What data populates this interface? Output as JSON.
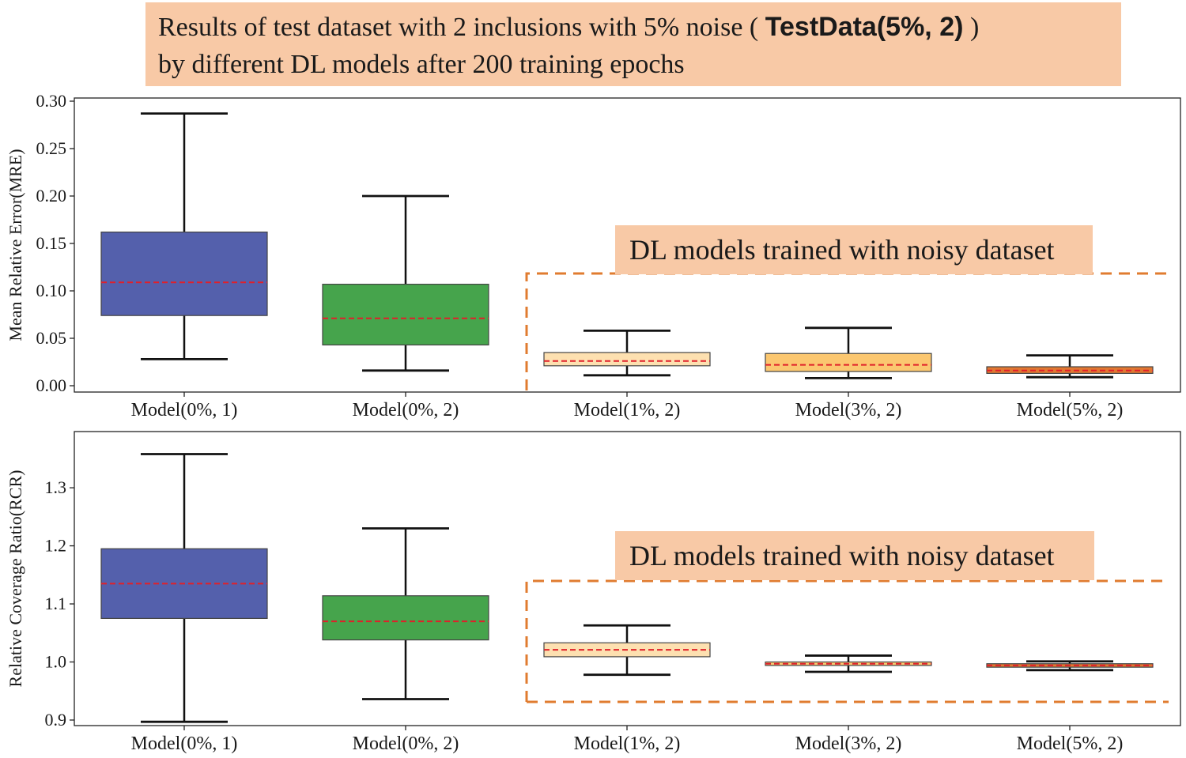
{
  "title": {
    "line1_prefix": "Results of test dataset with 2 inclusions with 5% noise (",
    "line1_bold": "TestData(5%, 2)",
    "line1_suffix": ")",
    "line2": "by different DL models after 200 training epochs"
  },
  "colors": {
    "model_0_1": "#5460ac",
    "model_0_2": "#46a44c",
    "model_1_2": "#fde0b0",
    "model_3_2": "#fbc770",
    "model_5_2": "#e07832",
    "median_line": "#e0202a",
    "highlight_box": "#f8c9a6",
    "highlight_border": "#e07c30"
  },
  "chart_data": [
    {
      "type": "box",
      "ylabel": "Mean Relative Error(MRE)",
      "ylim": [
        0.0,
        0.3
      ],
      "yticks": [
        0.0,
        0.05,
        0.1,
        0.15,
        0.2,
        0.25,
        0.3
      ],
      "ytick_labels": [
        "0.00",
        "0.05",
        "0.10",
        "0.15",
        "0.20",
        "0.25",
        "0.30"
      ],
      "categories": [
        "Model(0%, 1)",
        "Model(0%, 2)",
        "Model(1%, 2)",
        "Model(3%, 2)",
        "Model(5%, 2)"
      ],
      "boxes": [
        {
          "whisker_low": 0.028,
          "q1": 0.074,
          "median": 0.109,
          "q3": 0.162,
          "whisker_high": 0.287
        },
        {
          "whisker_low": 0.016,
          "q1": 0.043,
          "median": 0.071,
          "q3": 0.107,
          "whisker_high": 0.2
        },
        {
          "whisker_low": 0.011,
          "q1": 0.021,
          "median": 0.026,
          "q3": 0.035,
          "whisker_high": 0.058
        },
        {
          "whisker_low": 0.008,
          "q1": 0.015,
          "median": 0.022,
          "q3": 0.034,
          "whisker_high": 0.061
        },
        {
          "whisker_low": 0.009,
          "q1": 0.013,
          "median": 0.016,
          "q3": 0.02,
          "whisker_high": 0.032
        }
      ],
      "highlight_label": "DL models trained with noisy dataset"
    },
    {
      "type": "box",
      "ylabel": "Relative Coverage Ratio(RCR)",
      "ylim": [
        0.885,
        1.375
      ],
      "yticks": [
        0.9,
        1.0,
        1.1,
        1.2,
        1.3
      ],
      "ytick_labels": [
        "0.9",
        "1.0",
        "1.1",
        "1.2",
        "1.3"
      ],
      "categories": [
        "Model(0%, 1)",
        "Model(0%, 2)",
        "Model(1%, 2)",
        "Model(3%, 2)",
        "Model(5%, 2)"
      ],
      "boxes": [
        {
          "whisker_low": 0.897,
          "q1": 1.075,
          "median": 1.135,
          "q3": 1.195,
          "whisker_high": 1.358
        },
        {
          "whisker_low": 0.936,
          "q1": 1.038,
          "median": 1.07,
          "q3": 1.114,
          "whisker_high": 1.23
        },
        {
          "whisker_low": 0.978,
          "q1": 1.009,
          "median": 1.021,
          "q3": 1.033,
          "whisker_high": 1.063
        },
        {
          "whisker_low": 0.983,
          "q1": 0.994,
          "median": 0.997,
          "q3": 1.0,
          "whisker_high": 1.011
        },
        {
          "whisker_low": 0.986,
          "q1": 0.991,
          "median": 0.994,
          "q3": 0.997,
          "whisker_high": 1.001
        }
      ],
      "highlight_label": "DL models trained with noisy dataset"
    }
  ]
}
